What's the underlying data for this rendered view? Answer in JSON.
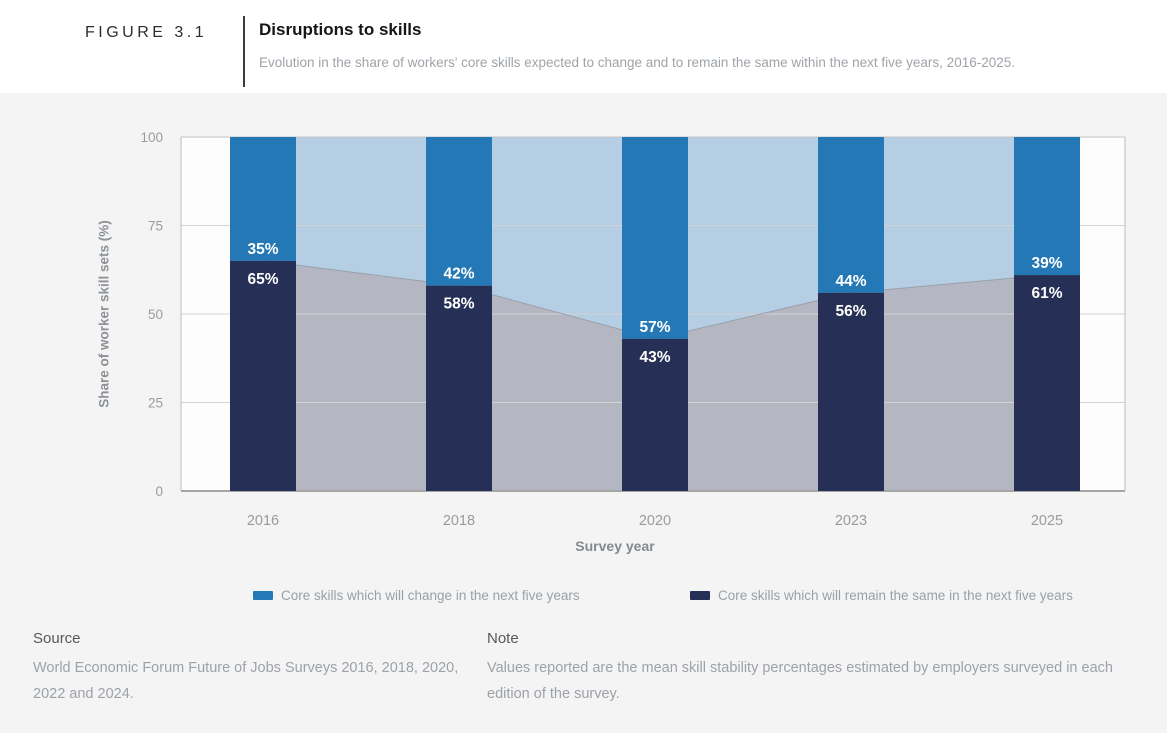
{
  "figure": {
    "label": "FIGURE 3.1",
    "title": "Disruptions to skills",
    "subtitle": "Evolution in the share of workers' core skills expected to change and to remain the same within the next five years, 2016-2025."
  },
  "chart_data": {
    "type": "bar",
    "variant": "stacked-bars-with-background-area",
    "categories": [
      "2016",
      "2018",
      "2020",
      "2023",
      "2025"
    ],
    "series": [
      {
        "name": "Core skills which will change in the next five years",
        "values": [
          35,
          42,
          57,
          44,
          39
        ],
        "color": "#2478b5",
        "area_color": "#b6cee4"
      },
      {
        "name": "Core skills which will remain the same in the next five years",
        "values": [
          65,
          58,
          43,
          56,
          61
        ],
        "color": "#262f55",
        "area_color": "#b4b7c2"
      }
    ],
    "value_suffix": "%",
    "xlabel": "Survey year",
    "ylabel": "Share of worker skill sets (%)",
    "ylim": [
      0,
      100
    ],
    "yticks": [
      0,
      25,
      50,
      75,
      100
    ],
    "grid": true,
    "legend_position": "bottom",
    "colors": {
      "plot_background": "#fdfdfd",
      "panel_background": "#f4f4f4",
      "gridline": "#d3d3d3",
      "top_border": "#c3c3c3",
      "axis_line": "#a6a6a6",
      "spine": "#bdbdbd",
      "area_boundary_stroke": "#99a0ab",
      "tick_label": "#9b9b9b",
      "bar_value_label": "#ffffff"
    }
  },
  "legend": {
    "items": [
      {
        "label": "Core skills which will change in the next five years",
        "color": "#2478b5"
      },
      {
        "label": "Core skills which will remain the same in the next five years",
        "color": "#262f55"
      }
    ]
  },
  "source": {
    "heading": "Source",
    "text": "World Economic Forum Future of Jobs Surveys 2016, 2018, 2020, 2022 and 2024."
  },
  "note": {
    "heading": "Note",
    "text": "Values reported are the mean skill stability percentages estimated by employers surveyed in each edition of the survey."
  }
}
